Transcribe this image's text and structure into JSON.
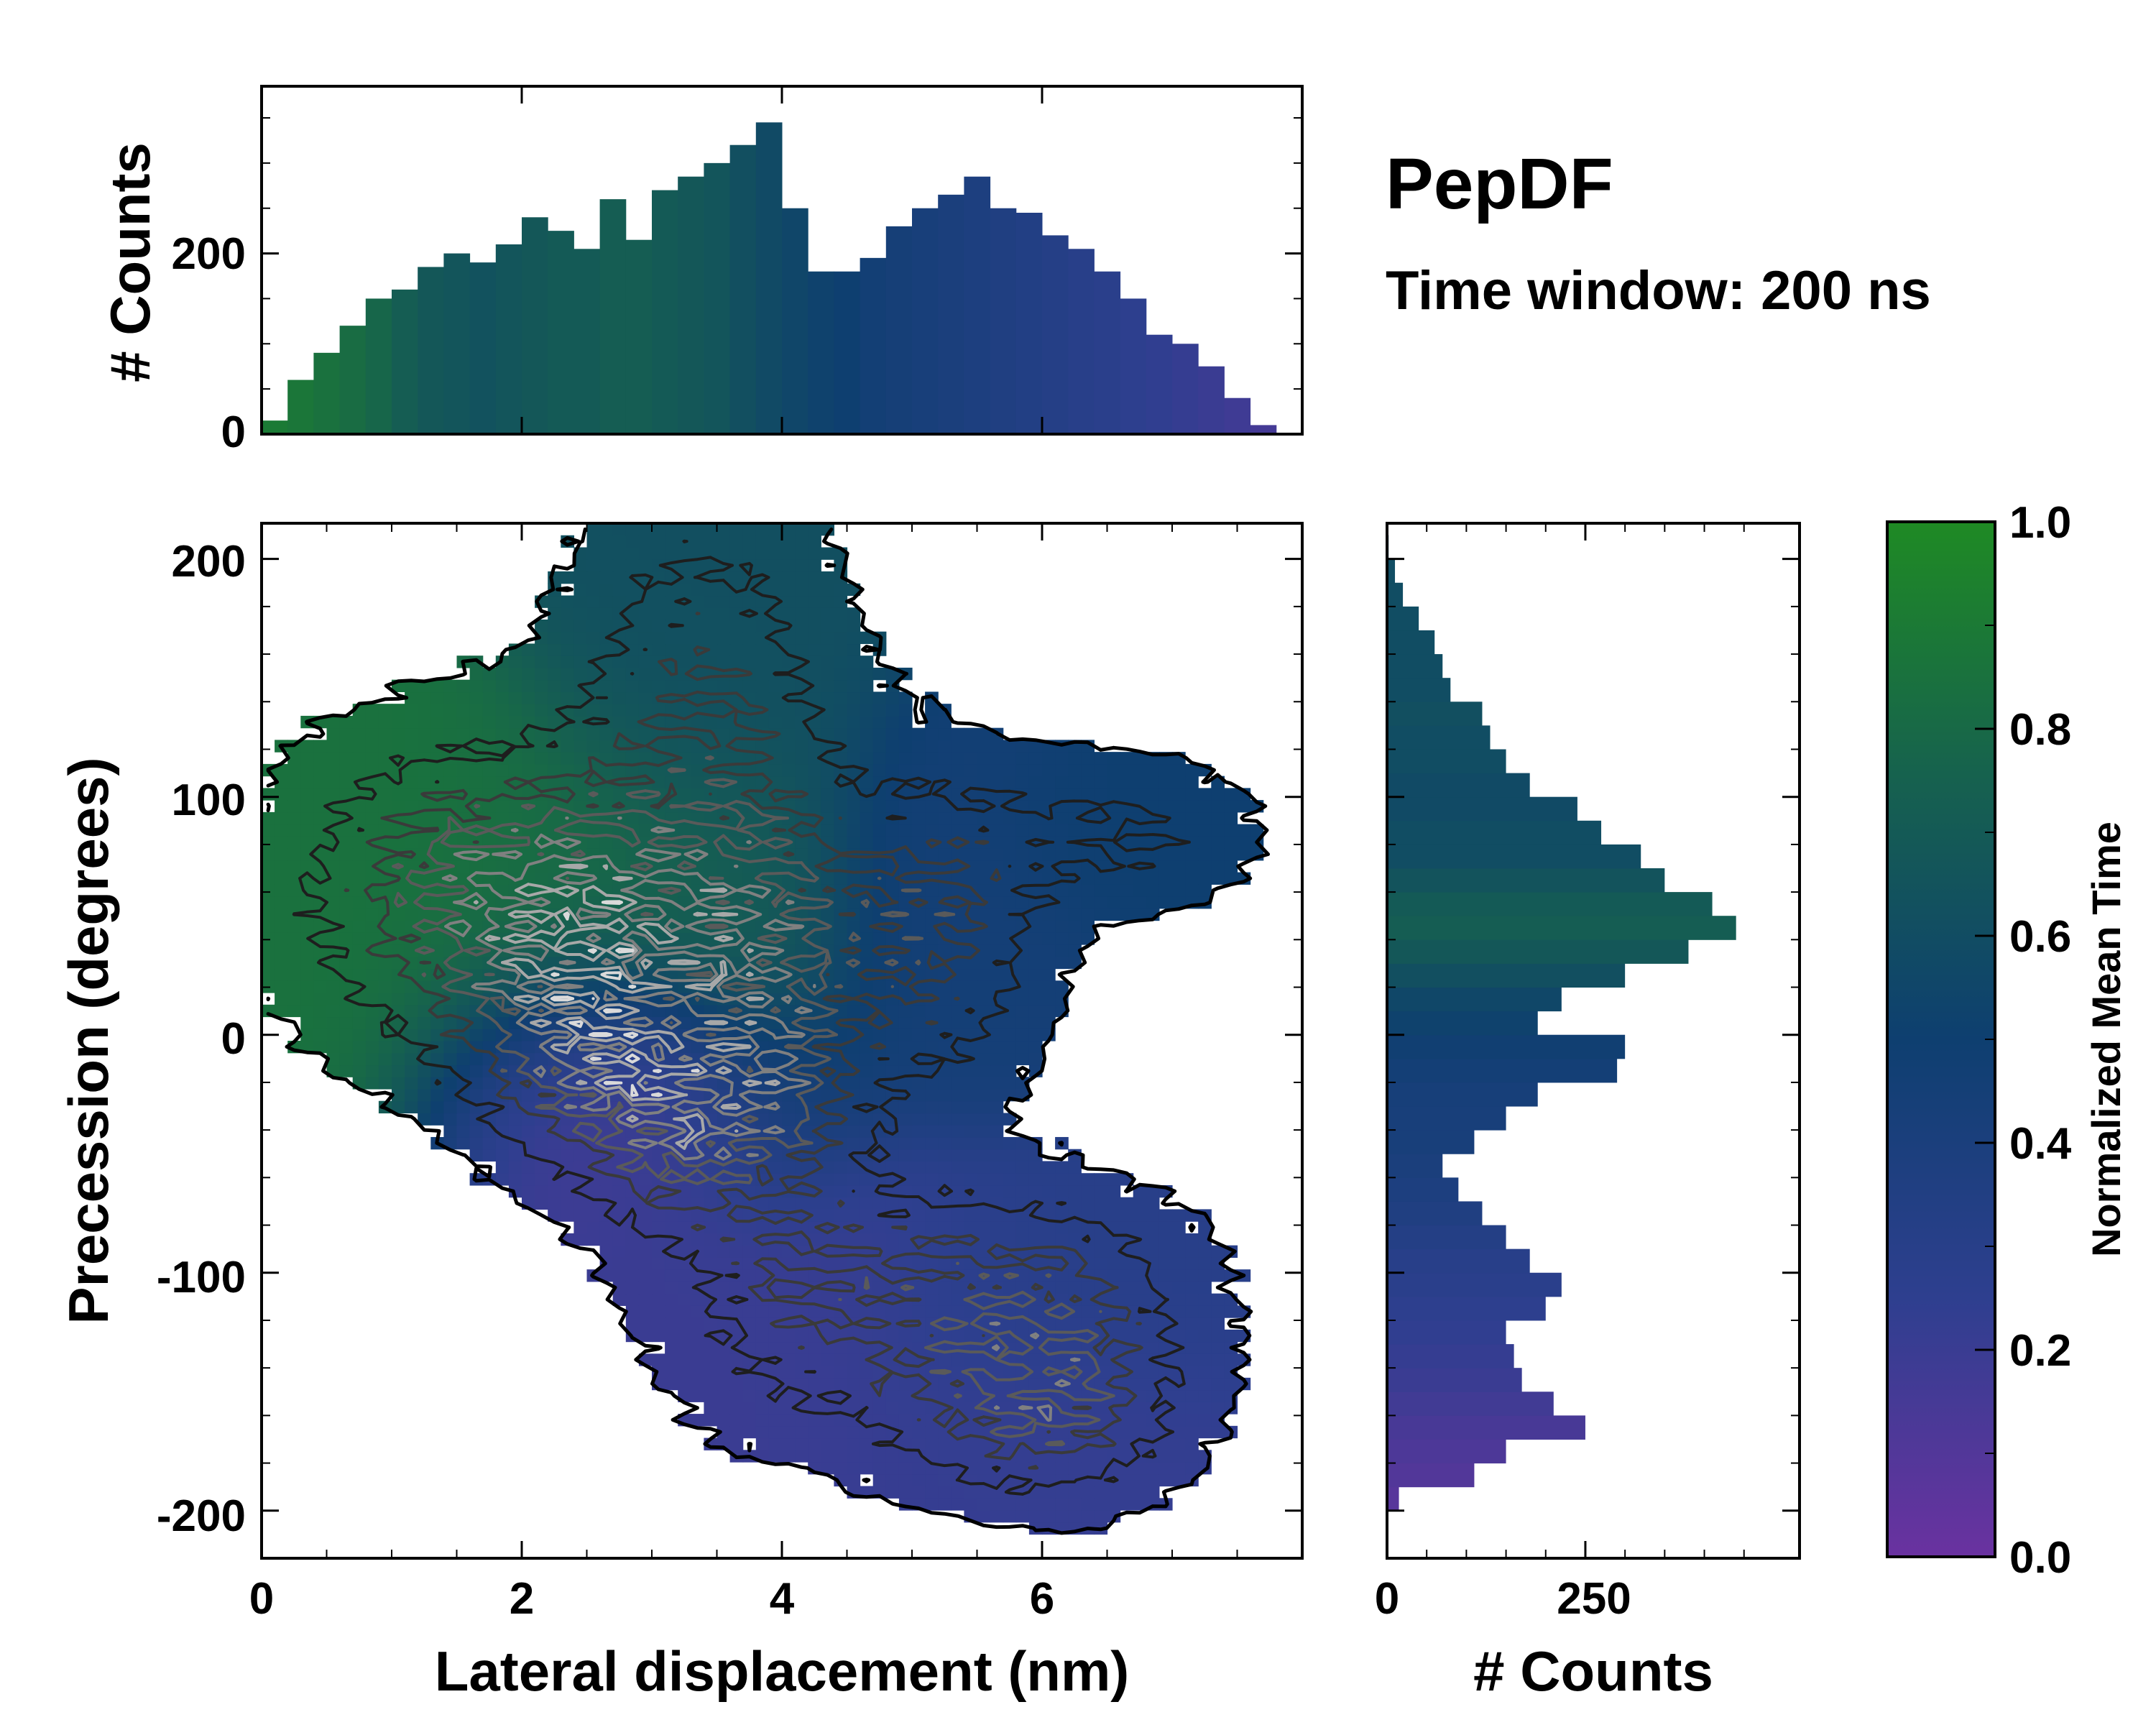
{
  "chart_data": {
    "type": "heatmap",
    "title": "PepDF",
    "subtitle": "Time window: 200 ns",
    "xlabel": "Lateral displacement (nm)",
    "ylabel": "Precession (degrees)",
    "xlim": [
      0,
      8
    ],
    "ylim": [
      -220,
      215
    ],
    "xticks": [
      0,
      2,
      4,
      6
    ],
    "yticks": [
      -200,
      -100,
      0,
      100,
      200
    ],
    "colorbar": {
      "label": "Normalized Mean Time",
      "range": [
        0.0,
        1.0
      ],
      "ticks": [
        "0.0",
        "0.2",
        "0.4",
        "0.6",
        "0.8",
        "1.0"
      ],
      "colors": [
        "#6a32a0",
        "#2e3f8f",
        "#0e3f70",
        "#16614f",
        "#1f8a24"
      ]
    },
    "clusters": [
      {
        "x": 1.5,
        "y": 60,
        "sx": 0.9,
        "sy": 45,
        "w": 0.6,
        "t": 0.85
      },
      {
        "x": 2.6,
        "y": 50,
        "sx": 0.7,
        "sy": 35,
        "w": 0.55,
        "t": 0.8
      },
      {
        "x": 3.8,
        "y": 45,
        "sx": 0.5,
        "sy": 40,
        "w": 0.5,
        "t": 0.72
      },
      {
        "x": 3.4,
        "y": 145,
        "sx": 0.7,
        "sy": 55,
        "w": 0.45,
        "t": 0.62
      },
      {
        "x": 5.1,
        "y": 45,
        "sx": 0.6,
        "sy": 45,
        "w": 0.55,
        "t": 0.45
      },
      {
        "x": 6.6,
        "y": 85,
        "sx": 0.7,
        "sy": 22,
        "w": 0.3,
        "t": 0.5
      },
      {
        "x": 2.5,
        "y": -10,
        "sx": 0.6,
        "sy": 30,
        "w": 0.6,
        "t": 0.12
      },
      {
        "x": 3.2,
        "y": -40,
        "sx": 0.5,
        "sy": 30,
        "w": 0.55,
        "t": 0.2
      },
      {
        "x": 4.0,
        "y": -20,
        "sx": 0.45,
        "sy": 30,
        "w": 0.45,
        "t": 0.45
      },
      {
        "x": 4.3,
        "y": -110,
        "sx": 0.8,
        "sy": 40,
        "w": 0.45,
        "t": 0.2
      },
      {
        "x": 6.0,
        "y": -160,
        "sx": 0.7,
        "sy": 25,
        "w": 0.55,
        "t": 0.22
      },
      {
        "x": 6.0,
        "y": -110,
        "sx": 0.8,
        "sy": 30,
        "w": 0.5,
        "t": 0.3
      }
    ],
    "top_histogram": {
      "ylabel": "# Counts",
      "yticks": [
        0,
        200
      ],
      "ymax": 385,
      "x": [
        0.1,
        0.3,
        0.5,
        0.7,
        0.9,
        1.1,
        1.3,
        1.5,
        1.7,
        1.9,
        2.1,
        2.3,
        2.5,
        2.7,
        2.9,
        3.1,
        3.3,
        3.5,
        3.7,
        3.9,
        4.1,
        4.3,
        4.5,
        4.7,
        4.9,
        5.1,
        5.3,
        5.5,
        5.7,
        5.9,
        6.1,
        6.3,
        6.5,
        6.7,
        6.9,
        7.1,
        7.3,
        7.5,
        7.7,
        7.9
      ],
      "counts": [
        15,
        60,
        90,
        120,
        150,
        160,
        185,
        200,
        190,
        210,
        240,
        225,
        205,
        260,
        215,
        270,
        285,
        300,
        320,
        345,
        250,
        180,
        180,
        195,
        230,
        250,
        265,
        285,
        250,
        245,
        220,
        205,
        180,
        150,
        110,
        100,
        75,
        40,
        10,
        0
      ],
      "color_t": [
        0.9,
        0.88,
        0.85,
        0.82,
        0.78,
        0.72,
        0.68,
        0.66,
        0.64,
        0.66,
        0.68,
        0.7,
        0.7,
        0.72,
        0.72,
        0.7,
        0.68,
        0.66,
        0.62,
        0.58,
        0.55,
        0.52,
        0.5,
        0.46,
        0.44,
        0.42,
        0.4,
        0.38,
        0.36,
        0.34,
        0.32,
        0.3,
        0.28,
        0.26,
        0.24,
        0.22,
        0.2,
        0.18,
        0.16,
        0.14
      ]
    },
    "right_histogram": {
      "xlabel": "# Counts",
      "xticks": [
        0,
        250
      ],
      "xmax": 520,
      "y": [
        -195,
        -185,
        -175,
        -165,
        -155,
        -145,
        -135,
        -125,
        -115,
        -105,
        -95,
        -85,
        -75,
        -65,
        -55,
        -45,
        -35,
        -25,
        -15,
        -5,
        5,
        15,
        25,
        35,
        45,
        55,
        65,
        75,
        85,
        95,
        105,
        115,
        125,
        135,
        145,
        155,
        165,
        175,
        185,
        195,
        205
      ],
      "counts": [
        15,
        110,
        150,
        250,
        210,
        170,
        160,
        150,
        200,
        220,
        180,
        150,
        120,
        90,
        70,
        110,
        150,
        190,
        290,
        300,
        190,
        220,
        300,
        380,
        440,
        410,
        350,
        320,
        270,
        240,
        180,
        150,
        130,
        120,
        80,
        70,
        60,
        40,
        20,
        10,
        2
      ],
      "color_t": [
        0.08,
        0.1,
        0.12,
        0.14,
        0.17,
        0.2,
        0.22,
        0.24,
        0.26,
        0.28,
        0.3,
        0.33,
        0.36,
        0.38,
        0.4,
        0.42,
        0.42,
        0.43,
        0.45,
        0.48,
        0.52,
        0.56,
        0.62,
        0.68,
        0.72,
        0.7,
        0.65,
        0.6,
        0.6,
        0.58,
        0.58,
        0.6,
        0.6,
        0.62,
        0.6,
        0.6,
        0.6,
        0.6,
        0.6,
        0.6,
        0.6
      ]
    }
  }
}
